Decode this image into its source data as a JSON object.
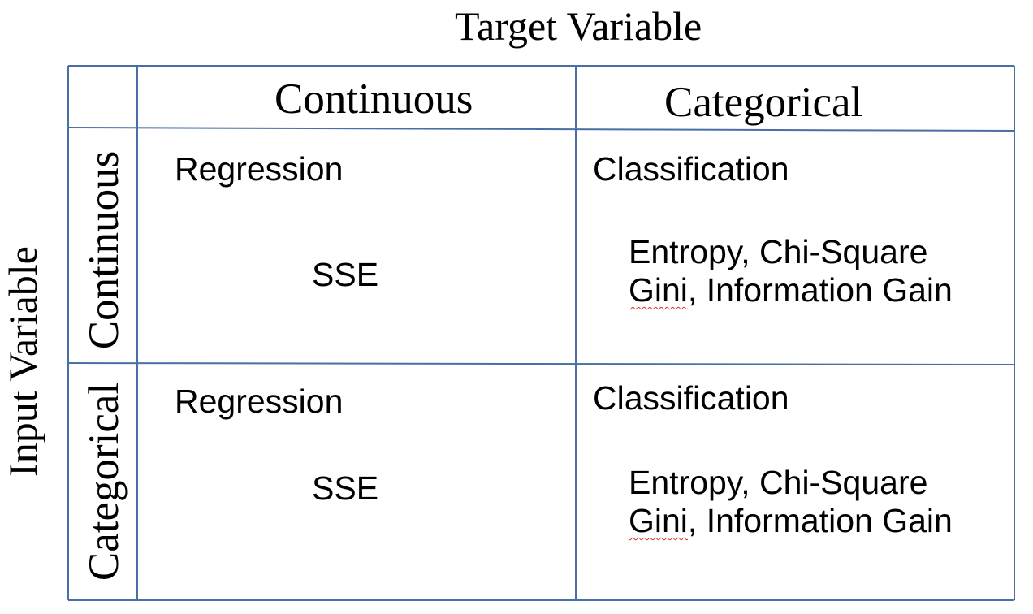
{
  "axes": {
    "target_label": "Target Variable",
    "input_label": "Input Variable"
  },
  "columns": [
    {
      "label": "Continuous"
    },
    {
      "label": "Categorical"
    }
  ],
  "rows": [
    {
      "label": "Continuous",
      "regression": {
        "title": "Regression",
        "metric": "SSE"
      },
      "classification": {
        "title": "Classification",
        "metrics_line1": "Entropy, Chi-Square",
        "metrics_line2_word": "Gini",
        "metrics_line2_rest": ", Information Gain"
      }
    },
    {
      "label": "Categorical",
      "regression": {
        "title": "Regression",
        "metric": "SSE"
      },
      "classification": {
        "title": "Classification",
        "metrics_line1": "Entropy, Chi-Square",
        "metrics_line2_word": "Gini",
        "metrics_line2_rest": ", Information Gain"
      }
    }
  ],
  "colors": {
    "grid_line": "#4a6fa5",
    "text": "#000000",
    "spellcheck_underline": "#d93025"
  }
}
